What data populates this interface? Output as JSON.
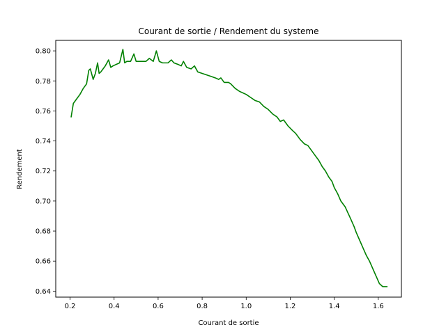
{
  "chart_data": {
    "type": "line",
    "title": "Courant de sortie / Rendement du systeme",
    "xlabel": "Courant de sortie",
    "ylabel": "Rendement",
    "xlim": [
      0.135,
      1.705
    ],
    "ylim": [
      0.636,
      0.807
    ],
    "xticks": [
      0.2,
      0.4,
      0.6,
      0.8,
      1.0,
      1.2,
      1.4,
      1.6
    ],
    "xtick_labels": [
      "0.2",
      "0.4",
      "0.6",
      "0.8",
      "1.0",
      "1.2",
      "1.4",
      "1.6"
    ],
    "yticks": [
      0.64,
      0.66,
      0.68,
      0.7,
      0.72,
      0.74,
      0.76,
      0.78,
      0.8
    ],
    "ytick_labels": [
      "0.64",
      "0.66",
      "0.68",
      "0.70",
      "0.72",
      "0.74",
      "0.76",
      "0.78",
      "0.80"
    ],
    "grid": false,
    "series": [
      {
        "color": "#008000",
        "x": [
          0.205,
          0.215,
          0.23,
          0.245,
          0.26,
          0.275,
          0.285,
          0.292,
          0.305,
          0.315,
          0.325,
          0.332,
          0.34,
          0.35,
          0.36,
          0.375,
          0.385,
          0.395,
          0.41,
          0.425,
          0.44,
          0.448,
          0.458,
          0.475,
          0.49,
          0.5,
          0.52,
          0.545,
          0.56,
          0.578,
          0.592,
          0.605,
          0.62,
          0.645,
          0.66,
          0.672,
          0.69,
          0.705,
          0.715,
          0.73,
          0.75,
          0.765,
          0.78,
          0.8,
          0.82,
          0.84,
          0.86,
          0.875,
          0.885,
          0.9,
          0.92,
          0.93,
          0.95,
          0.97,
          1.0,
          1.02,
          1.04,
          1.06,
          1.08,
          1.1,
          1.12,
          1.14,
          1.155,
          1.17,
          1.19,
          1.21,
          1.225,
          1.245,
          1.265,
          1.28,
          1.3,
          1.315,
          1.33,
          1.345,
          1.36,
          1.375,
          1.39,
          1.4,
          1.415,
          1.43,
          1.45,
          1.475,
          1.49,
          1.5,
          1.515,
          1.53,
          1.545,
          1.56,
          1.575,
          1.59,
          1.605,
          1.62,
          1.64
        ],
        "y": [
          0.756,
          0.765,
          0.768,
          0.771,
          0.775,
          0.778,
          0.787,
          0.788,
          0.781,
          0.785,
          0.792,
          0.785,
          0.786,
          0.788,
          0.79,
          0.794,
          0.789,
          0.79,
          0.791,
          0.792,
          0.801,
          0.792,
          0.793,
          0.793,
          0.798,
          0.793,
          0.793,
          0.793,
          0.795,
          0.793,
          0.8,
          0.793,
          0.792,
          0.792,
          0.794,
          0.792,
          0.791,
          0.79,
          0.793,
          0.789,
          0.788,
          0.79,
          0.786,
          0.785,
          0.784,
          0.783,
          0.782,
          0.781,
          0.782,
          0.779,
          0.779,
          0.778,
          0.775,
          0.773,
          0.771,
          0.769,
          0.767,
          0.766,
          0.763,
          0.761,
          0.758,
          0.756,
          0.753,
          0.754,
          0.75,
          0.747,
          0.745,
          0.741,
          0.738,
          0.737,
          0.733,
          0.73,
          0.727,
          0.723,
          0.72,
          0.716,
          0.713,
          0.709,
          0.705,
          0.7,
          0.696,
          0.688,
          0.683,
          0.679,
          0.674,
          0.669,
          0.664,
          0.66,
          0.655,
          0.65,
          0.645,
          0.643,
          0.643
        ]
      }
    ]
  }
}
